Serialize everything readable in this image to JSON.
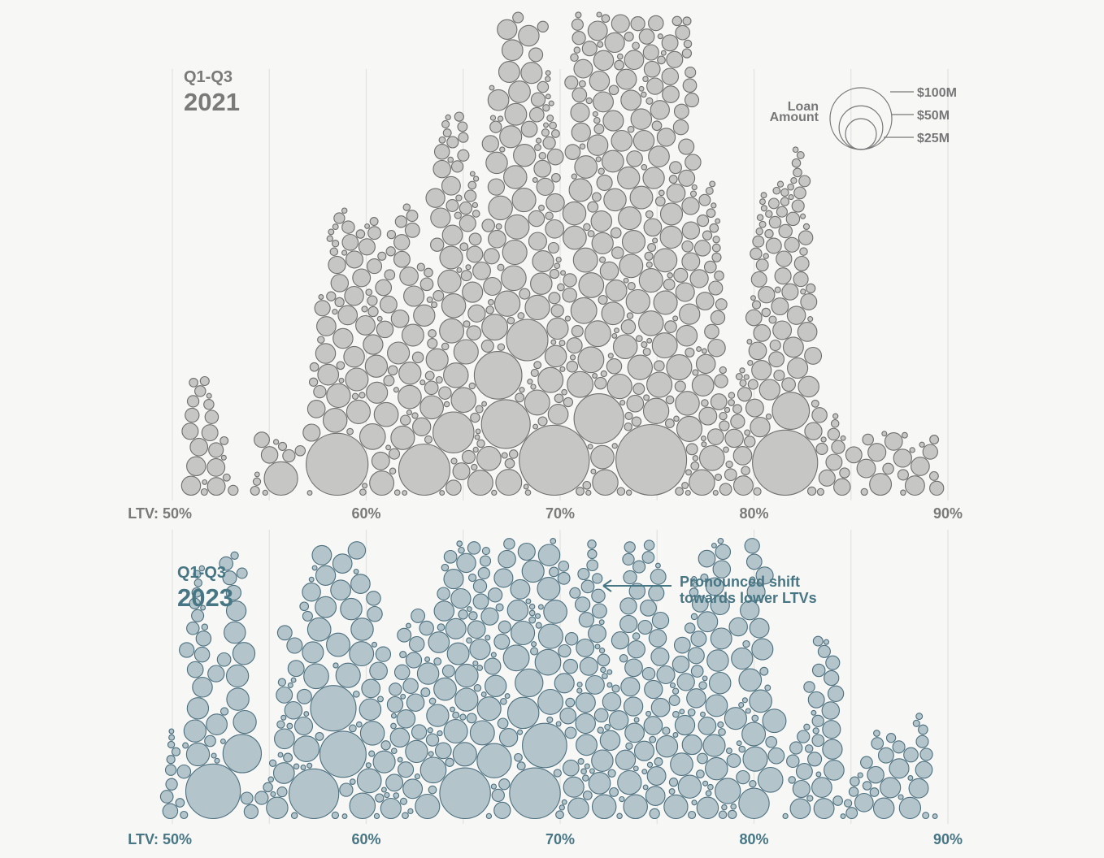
{
  "colors": {
    "panel_2021_fill": "#c6c6c4",
    "panel_2021_stroke": "#6e6e6c",
    "panel_2021_text": "#7a7a78",
    "panel_2023_fill": "#b3c5cb",
    "panel_2023_stroke": "#4c6f7e",
    "panel_2023_text": "#477684",
    "gridline": "#e3e3e1",
    "background": "#f7f7f6"
  },
  "chart_data": [
    {
      "type": "scatter",
      "encoding": "beeswarm; circle area = loan amount",
      "period_label": "Q1-Q3",
      "year_label": "2021",
      "x_tick_labels": [
        "LTV: 50%",
        "60%",
        "70%",
        "80%",
        "90%"
      ],
      "x_ticks": [
        50,
        60,
        70,
        80,
        90
      ],
      "xlim": [
        50,
        90
      ],
      "grid": true,
      "legend": {
        "title_lines": [
          "Loan",
          "Amount"
        ],
        "placement": "top-right",
        "entries": [
          {
            "label": "$100M",
            "value": 100
          },
          {
            "label": "$50M",
            "value": 50
          },
          {
            "label": "$25M",
            "value": 25
          }
        ]
      },
      "large_loans": [
        {
          "ltv": 58.5,
          "amount": 77
        },
        {
          "ltv": 74.7,
          "amount": 100
        },
        {
          "ltv": 69.7,
          "amount": 98
        },
        {
          "ltv": 81.6,
          "amount": 85
        },
        {
          "ltv": 66.8,
          "amount": 46
        },
        {
          "ltv": 72.0,
          "amount": 50
        },
        {
          "ltv": 63.0,
          "amount": 53
        },
        {
          "ltv": 67.2,
          "amount": 48
        },
        {
          "ltv": 64.5,
          "amount": 34
        },
        {
          "ltv": 68.3,
          "amount": 35
        },
        {
          "ltv": 55.6,
          "amount": 23
        },
        {
          "ltv": 81.9,
          "amount": 28
        }
      ],
      "groups": [
        {
          "ltv_range": [
            50.8,
            53.2
          ],
          "loans": 22,
          "max_amount": 8
        },
        {
          "ltv_range": [
            53.8,
            57.0
          ],
          "loans": 10,
          "max_amount": 6
        },
        {
          "ltv_range": [
            57.0,
            60.2
          ],
          "loans": 50,
          "max_amount": 12
        },
        {
          "ltv_range": [
            60.3,
            64.0
          ],
          "loans": 70,
          "max_amount": 14
        },
        {
          "ltv_range": [
            64.0,
            68.0
          ],
          "loans": 110,
          "max_amount": 14
        },
        {
          "ltv_range": [
            67.5,
            71.0
          ],
          "loans": 120,
          "max_amount": 14
        },
        {
          "ltv_range": [
            71.0,
            74.5
          ],
          "loans": 140,
          "max_amount": 14
        },
        {
          "ltv_range": [
            74.5,
            78.3
          ],
          "loans": 130,
          "max_amount": 14
        },
        {
          "ltv_range": [
            78.3,
            80.5
          ],
          "loans": 45,
          "max_amount": 10
        },
        {
          "ltv_range": [
            80.5,
            83.2
          ],
          "loans": 60,
          "max_amount": 12
        },
        {
          "ltv_range": [
            83.2,
            86.5
          ],
          "loans": 18,
          "max_amount": 10
        },
        {
          "ltv_range": [
            86.5,
            89.6
          ],
          "loans": 16,
          "max_amount": 10
        }
      ]
    },
    {
      "type": "scatter",
      "encoding": "beeswarm; circle area = loan amount",
      "period_label": "Q1-Q3",
      "year_label": "2023",
      "x_tick_labels": [
        "LTV: 50%",
        "60%",
        "70%",
        "80%",
        "90%"
      ],
      "x_ticks": [
        50,
        60,
        70,
        80,
        90
      ],
      "xlim": [
        50,
        90
      ],
      "grid": true,
      "annotation": {
        "lines": [
          "Pronounced shift",
          "towards lower LTVs"
        ],
        "arrow_to_ltv": 71.0
      },
      "large_loans": [
        {
          "ltv": 52.1,
          "amount": 60
        },
        {
          "ltv": 57.3,
          "amount": 50
        },
        {
          "ltv": 65.1,
          "amount": 52
        },
        {
          "ltv": 68.7,
          "amount": 52
        },
        {
          "ltv": 58.8,
          "amount": 43
        },
        {
          "ltv": 58.3,
          "amount": 42
        },
        {
          "ltv": 69.2,
          "amount": 40
        },
        {
          "ltv": 53.6,
          "amount": 30
        },
        {
          "ltv": 80.0,
          "amount": 19
        },
        {
          "ltv": 68.1,
          "amount": 20
        },
        {
          "ltv": 68.4,
          "amount": 16
        },
        {
          "ltv": 66.6,
          "amount": 24
        }
      ],
      "groups": [
        {
          "ltv_range": [
            49.6,
            51.0
          ],
          "loans": 14,
          "max_amount": 6
        },
        {
          "ltv_range": [
            51.0,
            55.2
          ],
          "loans": 42,
          "max_amount": 12
        },
        {
          "ltv_range": [
            55.4,
            60.2
          ],
          "loans": 70,
          "max_amount": 14
        },
        {
          "ltv_range": [
            60.2,
            63.0
          ],
          "loans": 45,
          "max_amount": 12
        },
        {
          "ltv_range": [
            63.0,
            67.0
          ],
          "loans": 80,
          "max_amount": 14
        },
        {
          "ltv_range": [
            67.0,
            70.5
          ],
          "loans": 70,
          "max_amount": 14
        },
        {
          "ltv_range": [
            70.5,
            74.0
          ],
          "loans": 85,
          "max_amount": 12
        },
        {
          "ltv_range": [
            74.0,
            78.5
          ],
          "loans": 95,
          "max_amount": 12
        },
        {
          "ltv_range": [
            78.5,
            81.5
          ],
          "loans": 40,
          "max_amount": 14
        },
        {
          "ltv_range": [
            81.5,
            85.0
          ],
          "loans": 35,
          "max_amount": 10
        },
        {
          "ltv_range": [
            85.0,
            89.7
          ],
          "loans": 30,
          "max_amount": 10
        }
      ]
    }
  ]
}
